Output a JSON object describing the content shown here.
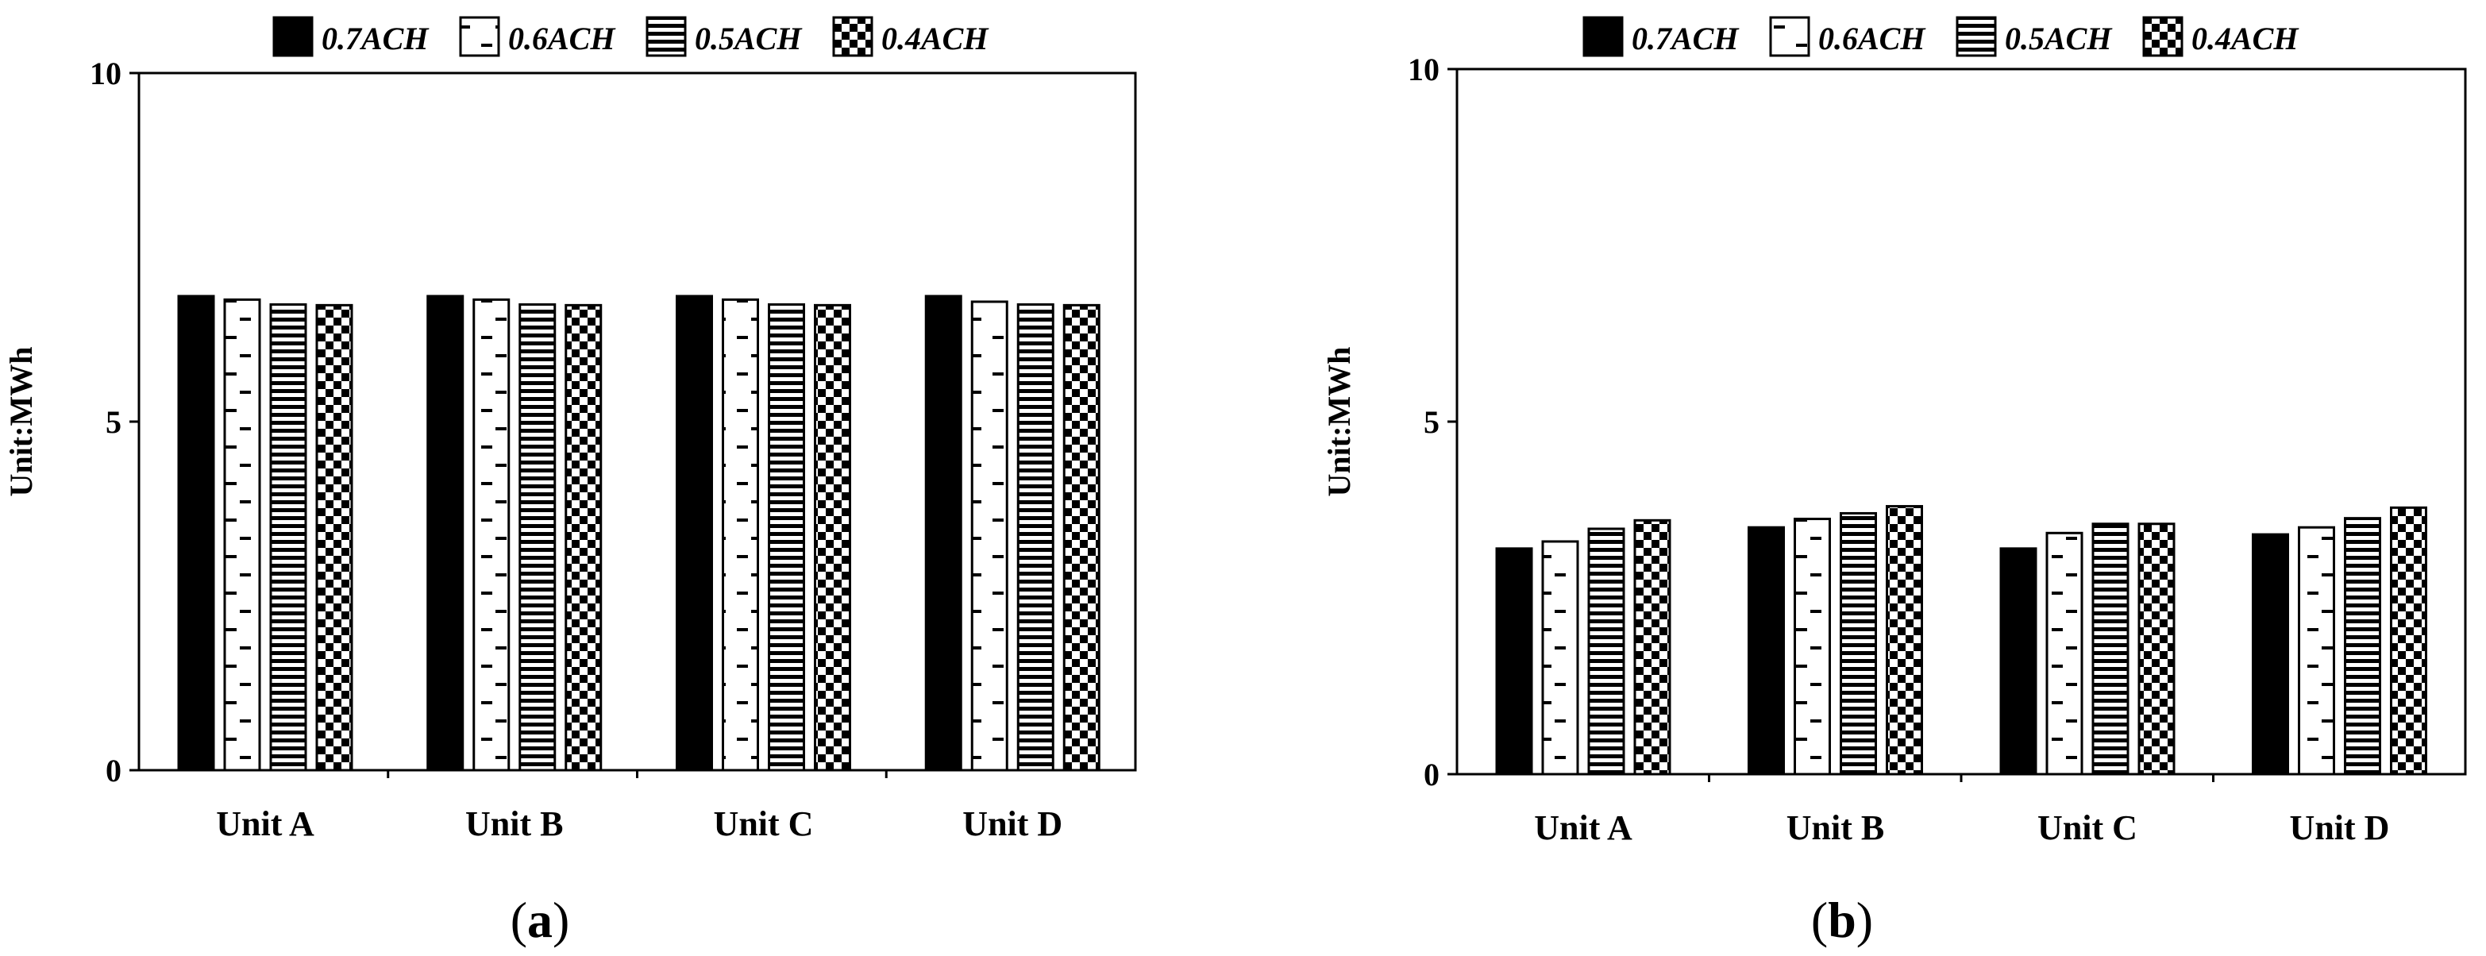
{
  "chart_data": [
    {
      "type": "bar",
      "caption_letter": "a",
      "ylabel": "Unit:MWh",
      "ylim": [
        0,
        10
      ],
      "yticks": [
        "0",
        "5",
        "10"
      ],
      "categories": [
        "Unit A",
        "Unit B",
        "Unit C",
        "Unit D"
      ],
      "legend_position": "top",
      "series": [
        {
          "name": "0.7ACH",
          "values": [
            6.8,
            6.8,
            6.8,
            6.8
          ]
        },
        {
          "name": "0.6ACH",
          "values": [
            6.75,
            6.75,
            6.75,
            6.72
          ]
        },
        {
          "name": "0.5ACH",
          "values": [
            6.68,
            6.68,
            6.68,
            6.68
          ]
        },
        {
          "name": "0.4ACH",
          "values": [
            6.67,
            6.67,
            6.67,
            6.67
          ]
        }
      ]
    },
    {
      "type": "bar",
      "caption_letter": "b",
      "ylabel": "Unit:MWh",
      "ylim": [
        0,
        10
      ],
      "yticks": [
        "0",
        "5",
        "10"
      ],
      "categories": [
        "Unit A",
        "Unit B",
        "Unit C",
        "Unit D"
      ],
      "legend_position": "top",
      "series": [
        {
          "name": "0.7ACH",
          "values": [
            3.2,
            3.5,
            3.2,
            3.4
          ]
        },
        {
          "name": "0.6ACH",
          "values": [
            3.3,
            3.62,
            3.42,
            3.5
          ]
        },
        {
          "name": "0.5ACH",
          "values": [
            3.48,
            3.7,
            3.55,
            3.63
          ]
        },
        {
          "name": "0.4ACH",
          "values": [
            3.6,
            3.8,
            3.55,
            3.78
          ]
        }
      ]
    }
  ]
}
